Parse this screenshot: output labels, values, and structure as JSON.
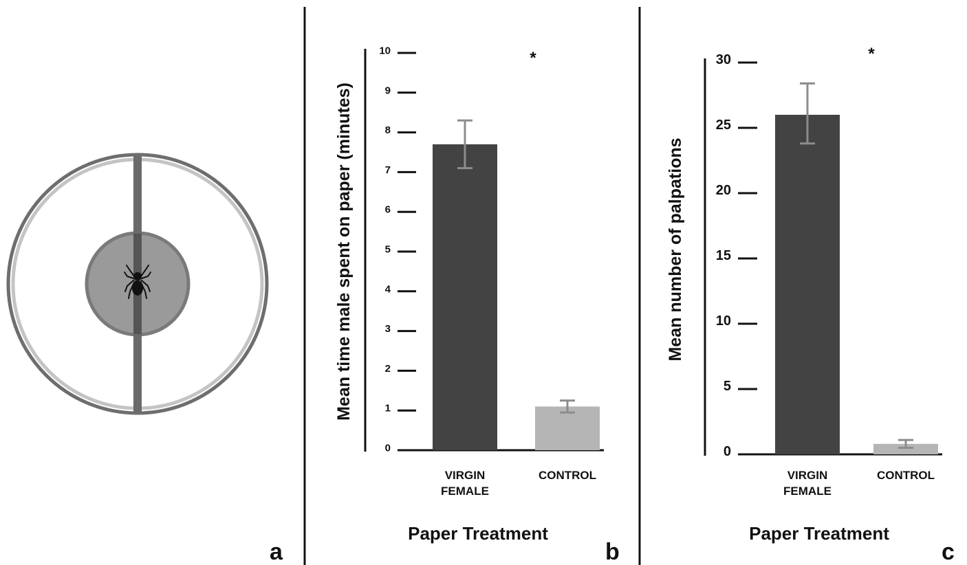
{
  "panels": {
    "a": {
      "label": "a",
      "icon": "spider-icon"
    },
    "b": {
      "label": "b"
    },
    "c": {
      "label": "c"
    }
  },
  "colors": {
    "virgin_bar": "#434343",
    "control_bar": "#b5b5b5",
    "error_bar": "#8c8c8c",
    "axis": "#111111",
    "arena_outer": "#6e6e6e",
    "arena_inner": "#bdbdbd",
    "arena_center": "#9a9a9a"
  },
  "chart_data": [
    {
      "type": "bar",
      "panel": "b",
      "categories": [
        [
          "VIRGIN",
          "FEMALE"
        ],
        [
          "CONTROL"
        ]
      ],
      "values": [
        7.7,
        1.1
      ],
      "errors": [
        [
          7.1,
          8.3
        ],
        [
          0.95,
          1.25
        ]
      ],
      "colors": [
        "#434343",
        "#b5b5b5"
      ],
      "xlabel": "Paper Treatment",
      "ylabel": "Mean time male spent on paper (minutes)",
      "ylim": [
        0,
        10
      ],
      "yticks": [
        0,
        1,
        2,
        3,
        4,
        5,
        6,
        7,
        8,
        9,
        10
      ],
      "annotation": "*",
      "grid": false
    },
    {
      "type": "bar",
      "panel": "c",
      "categories": [
        [
          "VIRGIN",
          "FEMALE"
        ],
        [
          "CONTROL"
        ]
      ],
      "values": [
        26,
        0.8
      ],
      "errors": [
        [
          23.8,
          28.4
        ],
        [
          0.5,
          1.1
        ]
      ],
      "colors": [
        "#434343",
        "#b5b5b5"
      ],
      "xlabel": "Paper Treatment",
      "ylabel": "Mean number of palpations",
      "ylim": [
        0,
        30
      ],
      "yticks": [
        0,
        5,
        10,
        15,
        20,
        25,
        30
      ],
      "annotation": "*",
      "grid": false
    }
  ]
}
